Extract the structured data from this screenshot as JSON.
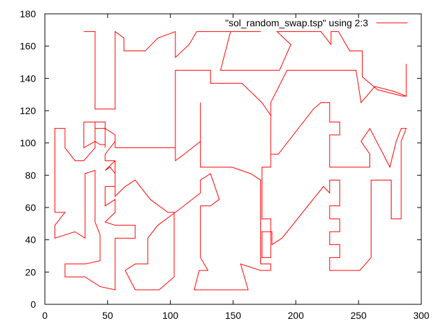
{
  "chart_data": {
    "type": "line",
    "title": "",
    "xlabel": "",
    "ylabel": "",
    "xlim": [
      0,
      300
    ],
    "ylim": [
      0,
      180
    ],
    "xticks": [
      0,
      50,
      100,
      150,
      200,
      250,
      300
    ],
    "yticks": [
      0,
      20,
      40,
      60,
      80,
      100,
      120,
      140,
      160,
      180
    ],
    "grid": false,
    "legend_position": "top-right",
    "series": [
      {
        "name": "\"sol_random_swap.tsp\" using 2:3",
        "color": "#ff0000",
        "points": [
          [
            31,
            169
          ],
          [
            40,
            169
          ],
          [
            40,
            121
          ],
          [
            56,
            121
          ],
          [
            56,
            169
          ],
          [
            63,
            165
          ],
          [
            63,
            157
          ],
          [
            80,
            157
          ],
          [
            90,
            165
          ],
          [
            104,
            169
          ],
          [
            104,
            153
          ],
          [
            115,
            161
          ],
          [
            121,
            169
          ],
          [
            172,
            169
          ],
          [
            148,
            169
          ],
          [
            140,
            145
          ],
          [
            187,
            145
          ],
          [
            196,
            161
          ],
          [
            185,
            169
          ],
          [
            220,
            169
          ],
          [
            228,
            161
          ],
          [
            228,
            169
          ],
          [
            234,
            169
          ],
          [
            243,
            157
          ],
          [
            253,
            157
          ],
          [
            253,
            141
          ],
          [
            265,
            133
          ],
          [
            285,
            129
          ],
          [
            288,
            129
          ],
          [
            288,
            149
          ],
          [
            288,
            129
          ],
          [
            278,
            132
          ],
          [
            263,
            135
          ],
          [
            252,
            125
          ],
          [
            248,
            145
          ],
          [
            193,
            145
          ],
          [
            180,
            125
          ],
          [
            180,
            93
          ],
          [
            186,
            93
          ],
          [
            214,
            121
          ],
          [
            220,
            125
          ],
          [
            227,
            125
          ],
          [
            227,
            113
          ],
          [
            235,
            113
          ],
          [
            235,
            105
          ],
          [
            227,
            105
          ],
          [
            227,
            85
          ],
          [
            259,
            85
          ],
          [
            259,
            93
          ],
          [
            252,
            101
          ],
          [
            259,
            109
          ],
          [
            275,
            85
          ],
          [
            280,
            101
          ],
          [
            284,
            109
          ],
          [
            288,
            109
          ],
          [
            284,
            101
          ],
          [
            284,
            53
          ],
          [
            276,
            53
          ],
          [
            276,
            77
          ],
          [
            260,
            77
          ],
          [
            260,
            29
          ],
          [
            251,
            21
          ],
          [
            227,
            21
          ],
          [
            227,
            29
          ],
          [
            235,
            29
          ],
          [
            235,
            37
          ],
          [
            227,
            37
          ],
          [
            227,
            45
          ],
          [
            235,
            45
          ],
          [
            235,
            53
          ],
          [
            227,
            53
          ],
          [
            227,
            61
          ],
          [
            235,
            61
          ],
          [
            235,
            77
          ],
          [
            227,
            77
          ],
          [
            227,
            69
          ],
          [
            222,
            73
          ],
          [
            189,
            41
          ],
          [
            181,
            37
          ],
          [
            181,
            45
          ],
          [
            173,
            45
          ],
          [
            173,
            29
          ],
          [
            180,
            29
          ],
          [
            180,
            53
          ],
          [
            173,
            53
          ],
          [
            173,
            85
          ],
          [
            180,
            85
          ],
          [
            180,
            117
          ],
          [
            173,
            125
          ],
          [
            157,
            137
          ],
          [
            132,
            137
          ],
          [
            132,
            145
          ],
          [
            104,
            145
          ],
          [
            104,
            89
          ],
          [
            111,
            93
          ],
          [
            124,
            101
          ],
          [
            124,
            125
          ],
          [
            124,
            85
          ],
          [
            149,
            85
          ],
          [
            164,
            81
          ],
          [
            172,
            77
          ],
          [
            172,
            61
          ],
          [
            172,
            25
          ],
          [
            180,
            25
          ],
          [
            180,
            21
          ],
          [
            172,
            21
          ],
          [
            156,
            25
          ],
          [
            162,
            9
          ],
          [
            119,
            9
          ],
          [
            123,
            21
          ],
          [
            130,
            21
          ],
          [
            124,
            29
          ],
          [
            124,
            61
          ],
          [
            132,
            61
          ],
          [
            139,
            65
          ],
          [
            132,
            81
          ],
          [
            124,
            77
          ],
          [
            124,
            69
          ],
          [
            104,
            57
          ],
          [
            90,
            49
          ],
          [
            82,
            41
          ],
          [
            82,
            25
          ],
          [
            72,
            25
          ],
          [
            64,
            21
          ],
          [
            72,
            9
          ],
          [
            91,
            9
          ],
          [
            103,
            17
          ],
          [
            103,
            57
          ],
          [
            98,
            57
          ],
          [
            84,
            65
          ],
          [
            72,
            77
          ],
          [
            64,
            73
          ],
          [
            56,
            67
          ],
          [
            56,
            89
          ],
          [
            48,
            89
          ],
          [
            48,
            93
          ],
          [
            56,
            101
          ],
          [
            56,
            97
          ],
          [
            104,
            97
          ],
          [
            104,
            97
          ],
          [
            56,
            97
          ],
          [
            56,
            105
          ],
          [
            48,
            109
          ],
          [
            48,
            113
          ],
          [
            40,
            113
          ],
          [
            31,
            113
          ],
          [
            31,
            97
          ],
          [
            40,
            101
          ],
          [
            44,
            99
          ],
          [
            48,
            99
          ],
          [
            48,
            97
          ],
          [
            48,
            109
          ],
          [
            40,
            109
          ],
          [
            40,
            113
          ],
          [
            40,
            97
          ],
          [
            31,
            89
          ],
          [
            24,
            89
          ],
          [
            16,
            97
          ],
          [
            16,
            109
          ],
          [
            8,
            109
          ],
          [
            8,
            57
          ],
          [
            16,
            57
          ],
          [
            8,
            49
          ],
          [
            8,
            41
          ],
          [
            24,
            45
          ],
          [
            32,
            41
          ],
          [
            32,
            81
          ],
          [
            40,
            83
          ],
          [
            40,
            51
          ],
          [
            44,
            43
          ],
          [
            44,
            27
          ],
          [
            32,
            25
          ],
          [
            16,
            25
          ],
          [
            16,
            17
          ],
          [
            32,
            17
          ],
          [
            44,
            11
          ],
          [
            56,
            9
          ],
          [
            56,
            41
          ],
          [
            72,
            41
          ],
          [
            72,
            49
          ],
          [
            56,
            49
          ],
          [
            48,
            51
          ],
          [
            56,
            57
          ],
          [
            56,
            65
          ],
          [
            48,
            61
          ],
          [
            48,
            73
          ],
          [
            56,
            73
          ],
          [
            56,
            81
          ],
          [
            52,
            85
          ],
          [
            48,
            83
          ],
          [
            56,
            89
          ]
        ]
      }
    ]
  }
}
